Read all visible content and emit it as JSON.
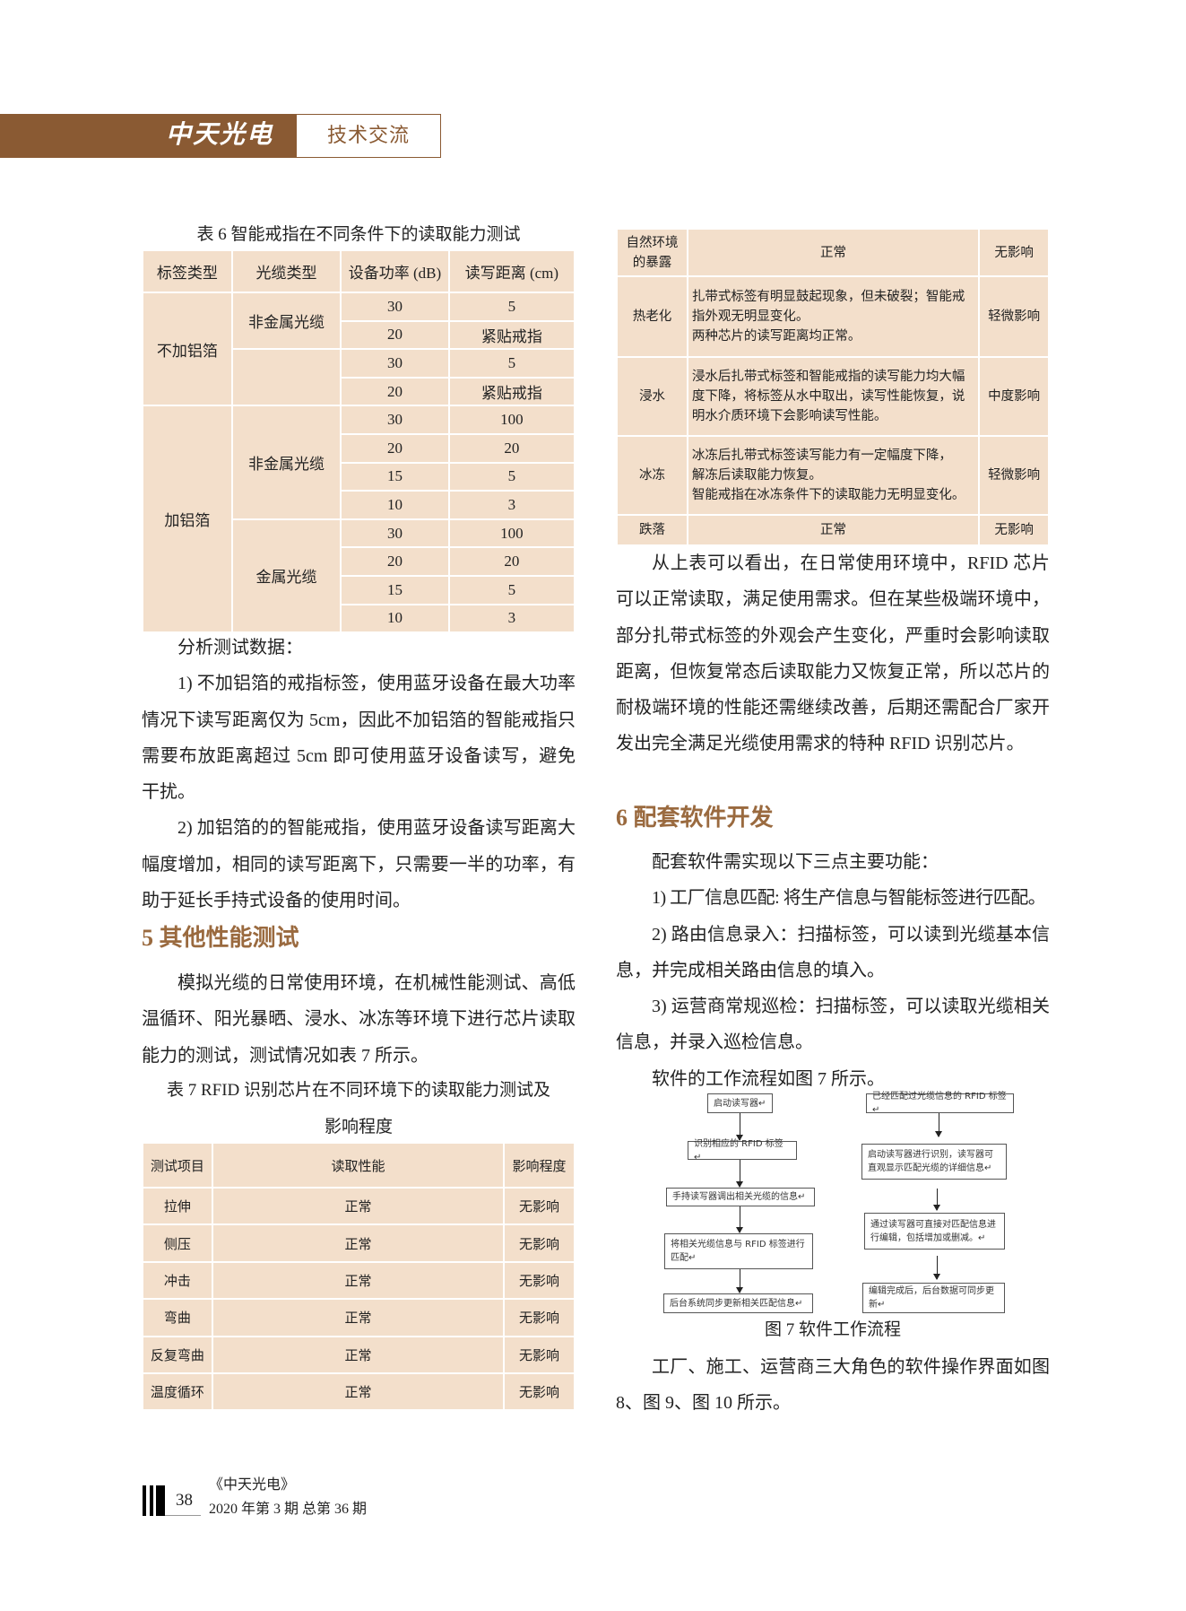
{
  "header": {
    "logo": "中天光电",
    "section": "技术交流",
    "brand_color": "#8a5a33"
  },
  "table6": {
    "caption": "表 6  智能戒指在不同条件下的读取能力测试",
    "headers": [
      "标签类型",
      "光缆类型",
      "设备功率 (dB)",
      "读写距离 (cm)"
    ],
    "groups": [
      {
        "tag": "不加铝箔",
        "cables": [
          {
            "cable": "非金属光缆",
            "rows": [
              [
                "30",
                "5"
              ],
              [
                "20",
                "紧贴戒指"
              ]
            ]
          },
          {
            "cable": "",
            "rows": [
              [
                "30",
                "5"
              ],
              [
                "20",
                "紧贴戒指"
              ]
            ]
          }
        ]
      },
      {
        "tag": "加铝箔",
        "cables": [
          {
            "cable": "非金属光缆",
            "rows": [
              [
                "30",
                "100"
              ],
              [
                "20",
                "20"
              ],
              [
                "15",
                "5"
              ],
              [
                "10",
                "3"
              ]
            ]
          },
          {
            "cable": "金属光缆",
            "rows": [
              [
                "30",
                "100"
              ],
              [
                "20",
                "20"
              ],
              [
                "15",
                "5"
              ],
              [
                "10",
                "3"
              ]
            ]
          }
        ]
      }
    ]
  },
  "left": {
    "analysis": [
      "分析测试数据：",
      "1) 不加铝箔的戒指标签，使用蓝牙设备在最大功率情况下读写距离仅为 5cm，因此不加铝箔的智能戒指只需要布放距离超过 5cm 即可使用蓝牙设备读写，避免干扰。",
      "2) 加铝箔的的智能戒指，使用蓝牙设备读写距离大幅度增加，相同的读写距离下，只需要一半的功率，有助于延长手持式设备的使用时间。"
    ],
    "heading5": "5  其他性能测试",
    "para5": "模拟光缆的日常使用环境，在机械性能测试、高低温循环、阳光暴晒、浸水、冰冻等环境下进行芯片读取能力的测试，测试情况如表 7 所示。",
    "table7_caption_1": "表 7  RFID 识别芯片在不同环境下的读取能力测试及",
    "table7_caption_2": "影响程度"
  },
  "table7": {
    "headers": [
      "测试项目",
      "读取性能",
      "影响程度"
    ],
    "rows": [
      [
        "拉伸",
        "正常",
        "无影响"
      ],
      [
        "侧压",
        "正常",
        "无影响"
      ],
      [
        "冲击",
        "正常",
        "无影响"
      ],
      [
        "弯曲",
        "正常",
        "无影响"
      ],
      [
        "反复弯曲",
        "正常",
        "无影响"
      ],
      [
        "温度循环",
        "正常",
        "无影响"
      ]
    ]
  },
  "table7_cont": {
    "rows": [
      {
        "item": "自然环境的暴露",
        "perf": [
          "正常"
        ],
        "impact": "无影响"
      },
      {
        "item": "热老化",
        "perf": [
          "扎带式标签有明显鼓起现象，但未破裂；智能戒指外观无明显变化。",
          "两种芯片的读写距离均正常。"
        ],
        "impact": "轻微影响"
      },
      {
        "item": "浸水",
        "perf": [
          "浸水后扎带式标签和智能戒指的读写能力均大幅度下降，将标签从水中取出，读写性能恢复，说明水介质环境下会影响读写性能。"
        ],
        "impact": "中度影响"
      },
      {
        "item": "冰冻",
        "perf": [
          "冰冻后扎带式标签读写能力有一定幅度下降，",
          "解冻后读取能力恢复。",
          "智能戒指在冰冻条件下的读取能力无明显变化。"
        ],
        "impact": "轻微影响"
      },
      {
        "item": "跌落",
        "perf": [
          "正常"
        ],
        "impact": "无影响"
      }
    ]
  },
  "right": {
    "para1": "从上表可以看出，在日常使用环境中，RFID 芯片可以正常读取，满足使用需求。但在某些极端环境中，部分扎带式标签的外观会产生变化，严重时会影响读取距离，但恢复常态后读取能力又恢复正常，所以芯片的耐极端环境的性能还需继续改善，后期还需配合厂家开发出完全满足光缆使用需求的特种 RFID 识别芯片。",
    "heading6": "6  配套软件开发",
    "items": [
      "配套软件需实现以下三点主要功能：",
      "1) 工厂信息匹配: 将生产信息与智能标签进行匹配。",
      "2) 路由信息录入：扫描标签，可以读到光缆基本信息，并完成相关路由信息的填入。",
      "3) 运营商常规巡检：扫描标签，可以读取光缆相关信息，并录入巡检信息。",
      "软件的工作流程如图 7 所示。"
    ],
    "figure_caption": "图 7  软件工作流程",
    "final_para": "工厂、施工、运营商三大角色的软件操作界面如图 8、图 9、图 10 所示。"
  },
  "flowchart": {
    "left": [
      "启动读写器↵",
      "识别相应的 RFID 标签↵",
      "手持读写器调出相关光缆的信息↵",
      "将相关光缆信息与 RFID 标签进行匹配↵",
      "后台系统同步更新相关匹配信息↵"
    ],
    "right": [
      "已经匹配过光缆信息的 RFID 标签↵",
      "启动读写器进行识别，读写器可直观显示匹配光缆的详细信息↵",
      "通过读写器可直接对匹配信息进行编辑，包括增加或删减。↵",
      "编辑完成后，后台数据可同步更新↵"
    ]
  },
  "footer": {
    "page": "38",
    "journal": "《中天光电》",
    "issue": "2020 年第 3 期 总第 36 期"
  }
}
